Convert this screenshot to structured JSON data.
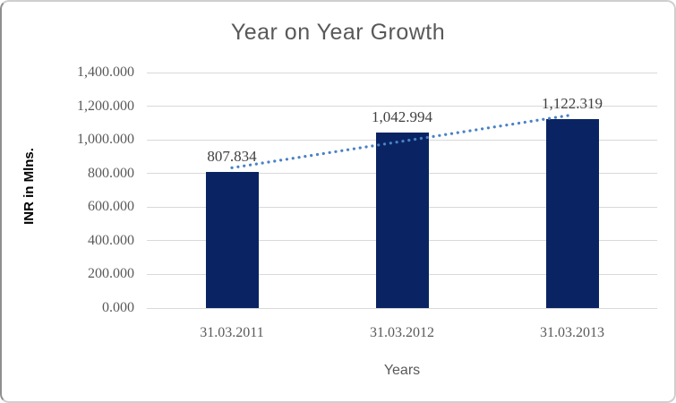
{
  "chart_data": {
    "type": "bar",
    "title": "Year on Year Growth",
    "xlabel": "Years",
    "ylabel": "INR in Mlns.",
    "categories": [
      "31.03.2011",
      "31.03.2012",
      "31.03.2013"
    ],
    "values": [
      807.834,
      1042.994,
      1122.319
    ],
    "data_labels": [
      "807.834",
      "1,042.994",
      "1,122.319"
    ],
    "ylim": [
      0,
      1400
    ],
    "ytick_values": [
      0,
      200,
      400,
      600,
      800,
      1000,
      1200,
      1400
    ],
    "ytick_labels": [
      "0.000",
      "200.000",
      "400.000",
      "600.000",
      "800.000",
      "1,000.000",
      "1,200.000",
      "1,400.000"
    ],
    "grid": true,
    "legend": "none",
    "trendline": {
      "type": "linear",
      "style": "dotted"
    },
    "colors": {
      "bar": "#0a2463",
      "gridline": "#d9d9d9",
      "trendline": "#4a82c4",
      "title_text": "#595959",
      "tick_text": "#595959",
      "data_label_text": "#404040",
      "axis_title_text": "#000000"
    }
  }
}
